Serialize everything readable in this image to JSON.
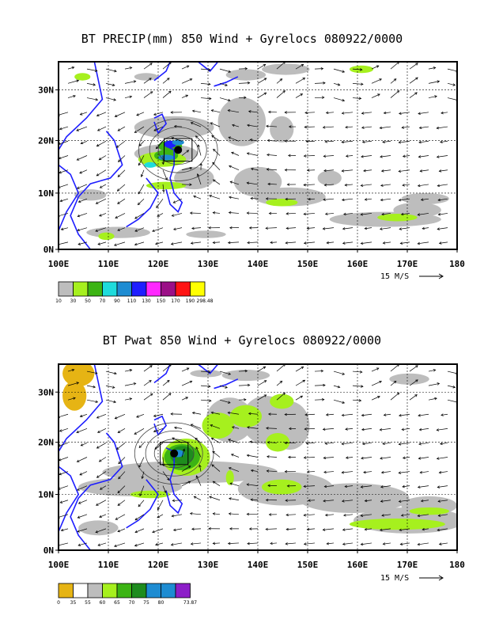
{
  "panels": [
    {
      "title": "BT PRECIP(mm) 850 Wind + Gyrelocs 080922/0000",
      "x_ticks": [
        "100E",
        "110E",
        "120E",
        "130E",
        "140E",
        "150E",
        "160E",
        "170E",
        "180"
      ],
      "y_ticks": [
        "0N",
        "10N",
        "20N",
        "30N"
      ],
      "scale_label": "15 M/S",
      "colorbar_colors": [
        "#bdbdbd",
        "#a6f01e",
        "#3cb414",
        "#1edcdc",
        "#1e8cd2",
        "#1e1eff",
        "#ff28ff",
        "#9b0f87",
        "#ff1414",
        "#ffff00"
      ],
      "colorbar_labels": [
        "10",
        "30",
        "50",
        "70",
        "90",
        "110",
        "130",
        "150",
        "170",
        "190",
        "298.48"
      ]
    },
    {
      "title": "BT Pwat 850 Wind + Gyrelocs 080922/0000",
      "x_ticks": [
        "100E",
        "110E",
        "120E",
        "130E",
        "140E",
        "150E",
        "160E",
        "170E",
        "180"
      ],
      "y_ticks": [
        "0N",
        "10N",
        "20N",
        "30N"
      ],
      "scale_label": "15 M/S",
      "colorbar_colors": [
        "#e6b414",
        "#ffffff",
        "#bdbdbd",
        "#a6f01e",
        "#3cb414",
        "#1e8c1e",
        "#1e8cd2",
        "#1e8cd2",
        "#8c1ec8"
      ],
      "colorbar_labels": [
        "0",
        "35",
        "55",
        "60",
        "65",
        "70",
        "75",
        "80",
        "73.87"
      ]
    }
  ],
  "legend_colors": {
    "coast": "#1e1eff",
    "gyre_marker": "#000000"
  }
}
